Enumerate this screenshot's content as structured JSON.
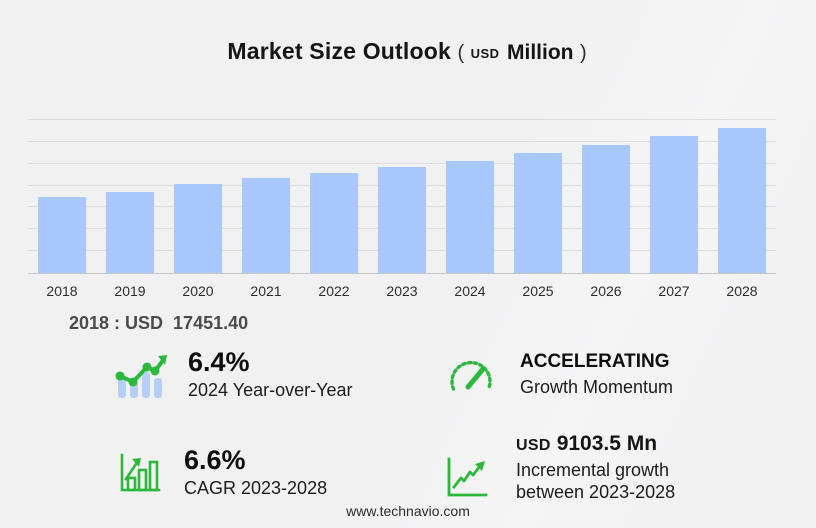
{
  "title": {
    "main": "Market Size Outlook",
    "paren_open": "(",
    "currency": "USD",
    "unit": "Million",
    "paren_close": ")"
  },
  "chart_data": {
    "type": "bar",
    "title": "Market Size Outlook (USD Million)",
    "xlabel": "",
    "ylabel": "USD Million",
    "categories": [
      "2018",
      "2019",
      "2020",
      "2021",
      "2022",
      "2023",
      "2024",
      "2025",
      "2026",
      "2027",
      "2028"
    ],
    "values": [
      17451.4,
      18500,
      20250,
      21660,
      22950,
      24177,
      25724,
      27430,
      29260,
      31230,
      33280.5
    ],
    "labeled_values": {
      "2018": 17451.4
    },
    "ylim": [
      0,
      35000
    ],
    "gridline_step": 5000,
    "grid": true,
    "legend": "none",
    "bar_color": "#a8c7fb"
  },
  "base_year_note": {
    "text": "2018 : USD  17451.40"
  },
  "stats": [
    {
      "icon": "bar-chart-trend-icon",
      "value": "6.4%",
      "label": "2024 Year-over-Year"
    },
    {
      "icon": "speedometer-icon",
      "heading": "ACCELERATING",
      "label": "Growth Momentum"
    },
    {
      "icon": "bar-chart-growth-icon",
      "value": "6.6%",
      "label": "CAGR 2023-2028"
    },
    {
      "icon": "line-chart-icon",
      "currency": "USD",
      "value": "9103.5 Mn",
      "label_line1": "Incremental growth",
      "label_line2": "between 2023-2028"
    }
  ],
  "footer": {
    "website": "www.technavio.com"
  },
  "colors": {
    "bar": "#a8c7fb",
    "icon_green": "#2db83d",
    "icon_blue_bars": "#b6cff7",
    "gridline": "#dddddf",
    "background": "#f1f1f2",
    "note_text": "#4b4b4b"
  }
}
